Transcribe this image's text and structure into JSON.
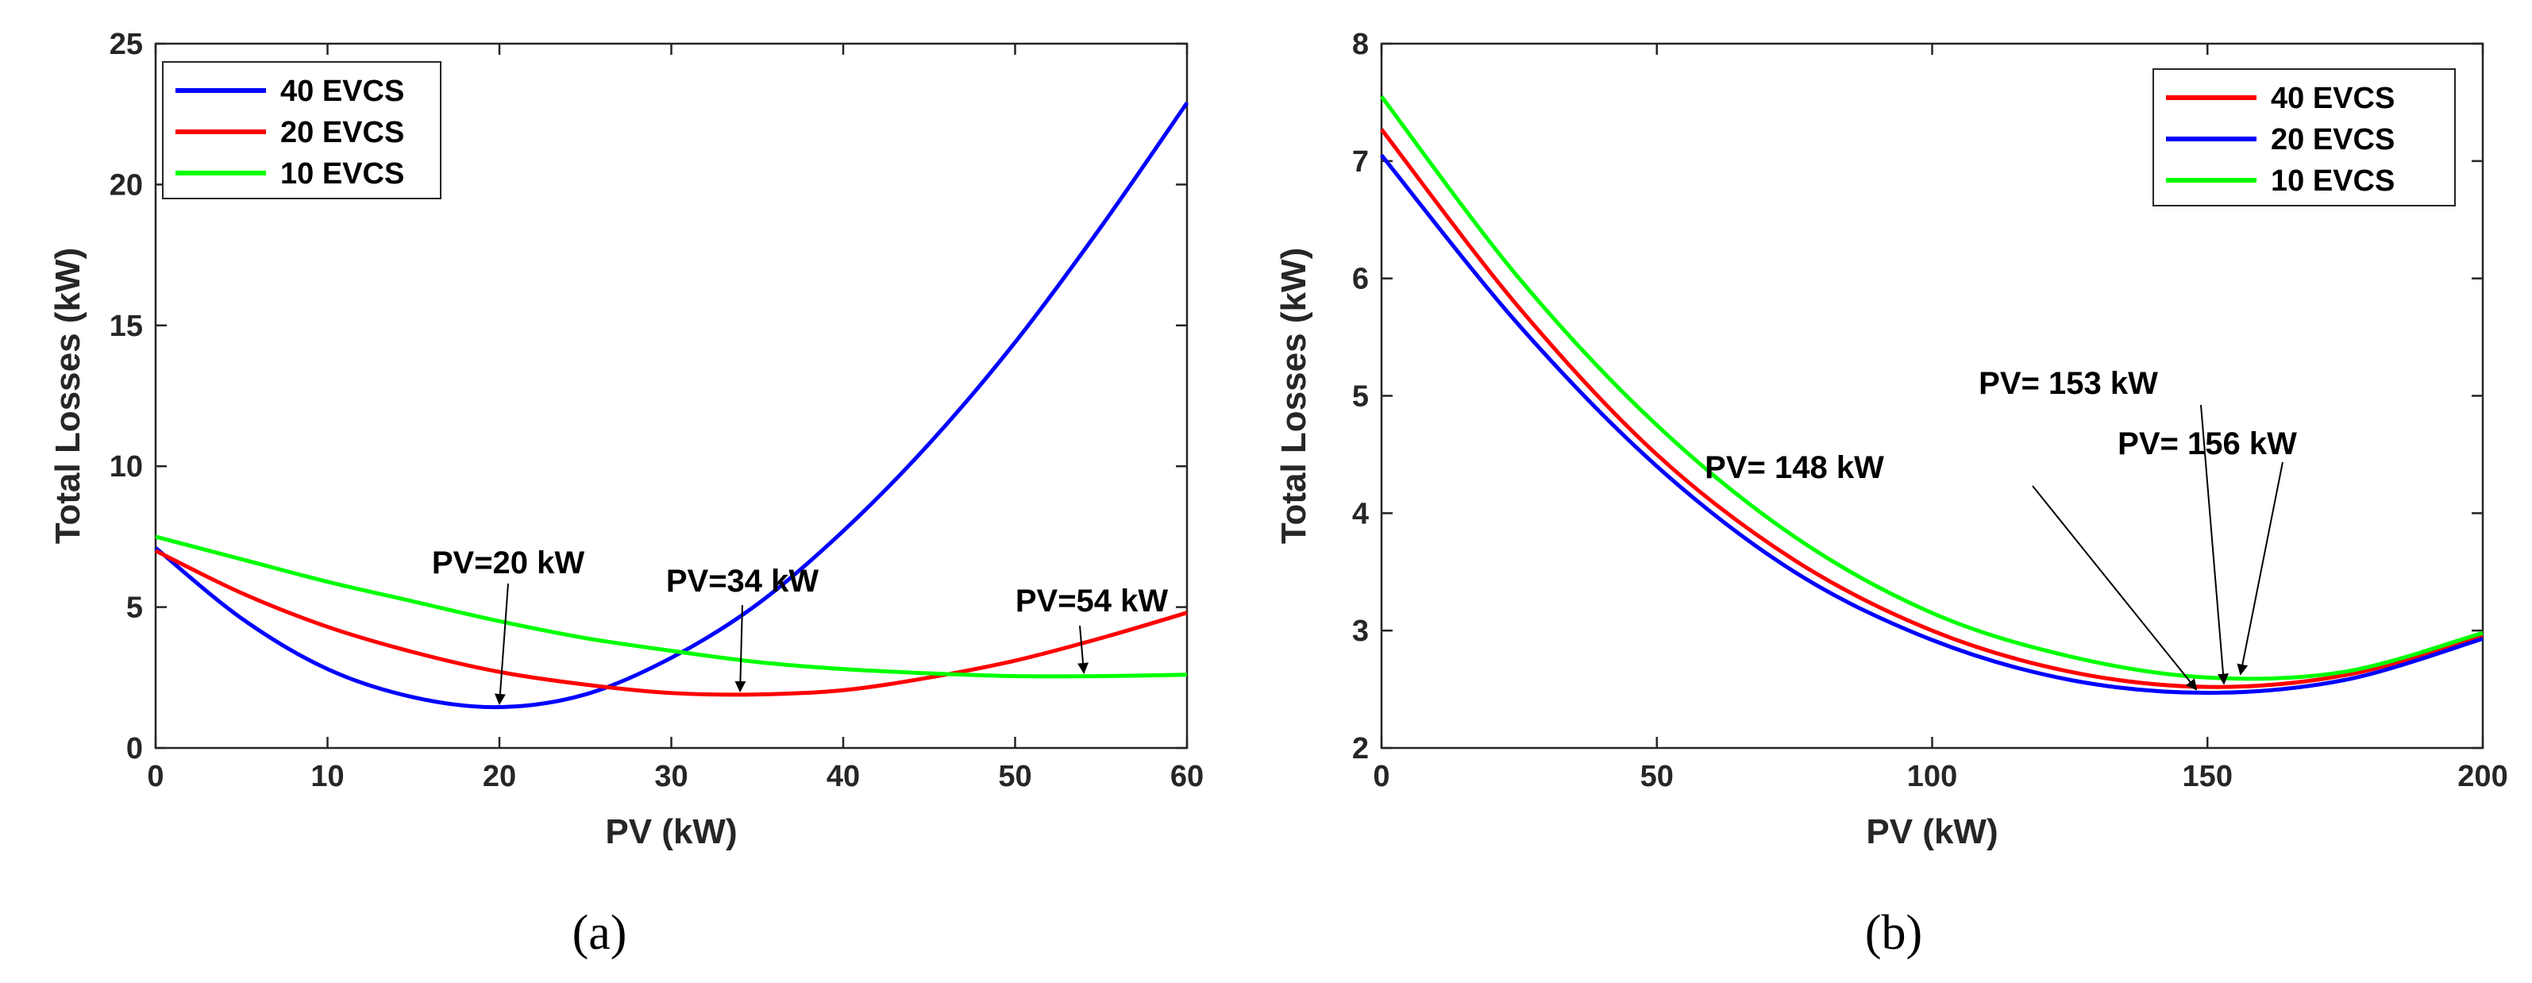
{
  "chart_data": [
    {
      "type": "line",
      "panel_label": "(a)",
      "xlabel": "PV (kW)",
      "ylabel": "Total Losses (kW)",
      "xlim": [
        0,
        60
      ],
      "ylim": [
        0,
        25
      ],
      "xticks": [
        0,
        10,
        20,
        30,
        40,
        50,
        60
      ],
      "yticks": [
        0,
        5,
        10,
        15,
        20,
        25
      ],
      "legend_position": "top-left",
      "series": [
        {
          "name": "40 EVCS",
          "color": "#0000ff",
          "x": [
            0,
            5,
            10,
            15,
            20,
            25,
            30,
            35,
            40,
            45,
            50,
            55,
            60
          ],
          "y": [
            7.1,
            4.6,
            2.8,
            1.8,
            1.45,
            1.9,
            3.2,
            5.1,
            7.7,
            10.8,
            14.4,
            18.5,
            22.9
          ]
        },
        {
          "name": "20 EVCS",
          "color": "#ff0000",
          "x": [
            0,
            5,
            10,
            15,
            20,
            25,
            30,
            35,
            40,
            45,
            50,
            55,
            60
          ],
          "y": [
            7.0,
            5.5,
            4.3,
            3.4,
            2.7,
            2.25,
            1.95,
            1.9,
            2.05,
            2.5,
            3.1,
            3.9,
            4.8
          ]
        },
        {
          "name": "10 EVCS",
          "color": "#00ff00",
          "x": [
            0,
            5,
            10,
            15,
            20,
            25,
            30,
            35,
            40,
            45,
            50,
            55,
            60
          ],
          "y": [
            7.5,
            6.7,
            5.9,
            5.2,
            4.5,
            3.9,
            3.45,
            3.05,
            2.8,
            2.65,
            2.55,
            2.55,
            2.6
          ]
        }
      ],
      "annotations": [
        {
          "text": "PV=20 kW",
          "x": 20,
          "y": 1.45
        },
        {
          "text": "PV=34 kW",
          "x": 34,
          "y": 1.9
        },
        {
          "text": "PV=54 kW",
          "x": 54,
          "y": 2.55
        }
      ]
    },
    {
      "type": "line",
      "panel_label": "(b)",
      "xlabel": "PV (kW)",
      "ylabel": "Total Losses (kW)",
      "xlim": [
        0,
        200
      ],
      "ylim": [
        2,
        8
      ],
      "xticks": [
        0,
        50,
        100,
        150,
        200
      ],
      "yticks": [
        2,
        3,
        4,
        5,
        6,
        7,
        8
      ],
      "legend_position": "top-right",
      "series": [
        {
          "name": "40 EVCS",
          "color": "#ff0000",
          "x": [
            0,
            25,
            50,
            75,
            100,
            125,
            150,
            175,
            200
          ],
          "y": [
            7.27,
            5.75,
            4.5,
            3.6,
            3.0,
            2.65,
            2.52,
            2.62,
            2.95
          ]
        },
        {
          "name": "20 EVCS",
          "color": "#0000ff",
          "x": [
            0,
            25,
            50,
            75,
            100,
            125,
            150,
            175,
            200
          ],
          "y": [
            7.05,
            5.6,
            4.4,
            3.5,
            2.92,
            2.58,
            2.47,
            2.58,
            2.93
          ]
        },
        {
          "name": "10 EVCS",
          "color": "#00ff00",
          "x": [
            0,
            25,
            50,
            75,
            100,
            125,
            150,
            175,
            200
          ],
          "y": [
            7.55,
            6.0,
            4.75,
            3.8,
            3.15,
            2.78,
            2.6,
            2.65,
            2.98
          ]
        }
      ],
      "annotations": [
        {
          "text": "PV= 148 kW",
          "x": 148,
          "y": 2.47
        },
        {
          "text": "PV= 153 kW",
          "x": 153,
          "y": 2.52
        },
        {
          "text": "PV= 156 kW",
          "x": 156,
          "y": 2.6
        }
      ]
    }
  ]
}
